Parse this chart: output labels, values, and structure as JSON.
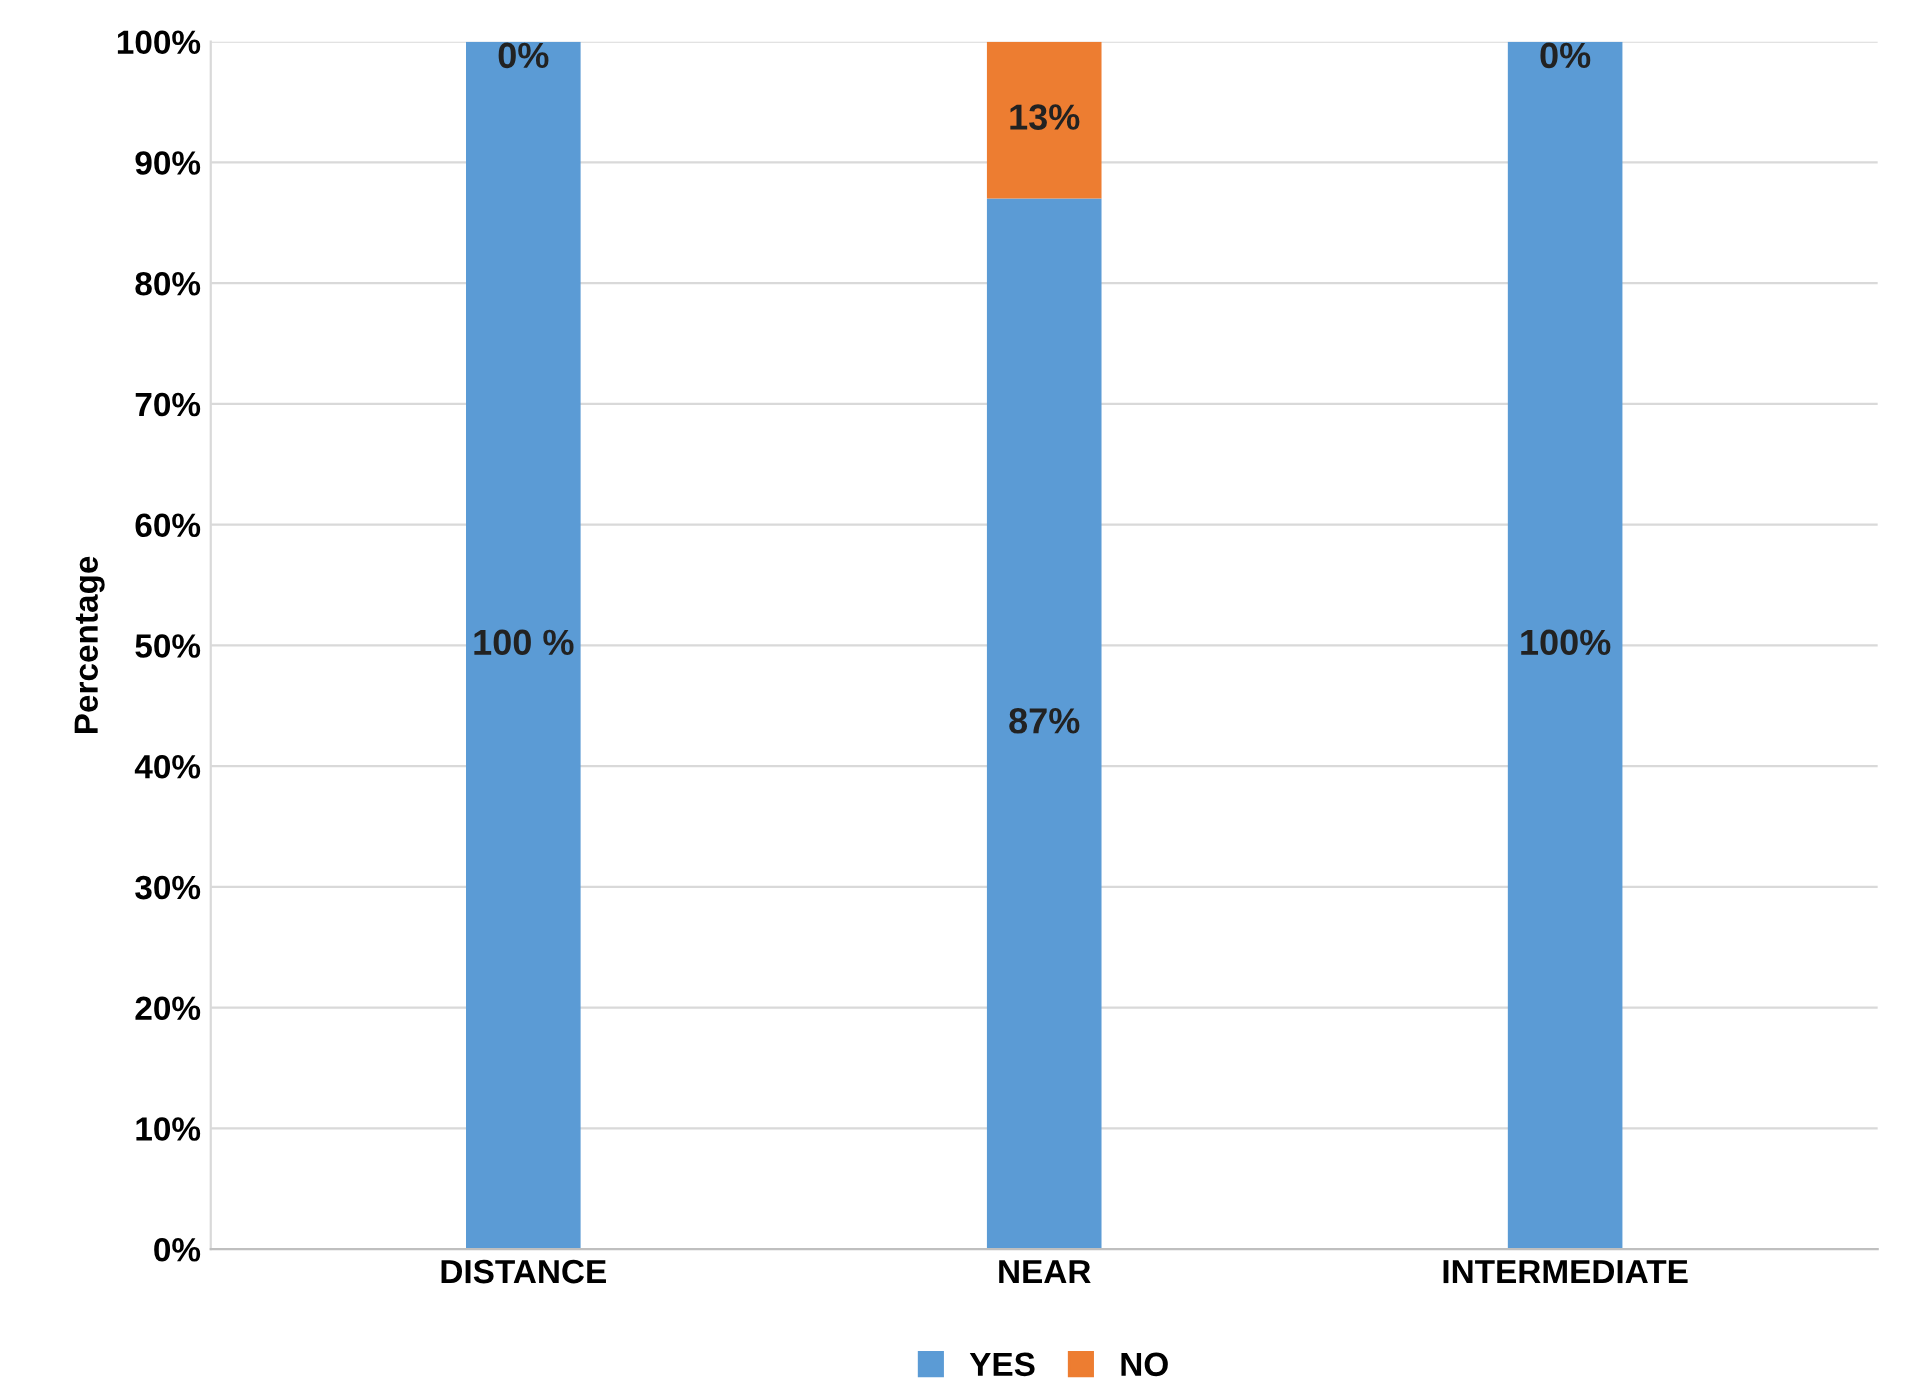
{
  "chart_data": {
    "type": "bar",
    "stacked": true,
    "ylabel": "Percentage",
    "categories": [
      "DISTANCE",
      "NEAR",
      "INTERMEDIATE"
    ],
    "series": [
      {
        "name": "YES",
        "color": "#5b9bd5",
        "values": [
          100,
          87,
          100
        ],
        "value_labels": [
          "100 %",
          "87%",
          "100%"
        ]
      },
      {
        "name": "NO",
        "color": "#ed7d31",
        "values": [
          0,
          13,
          0
        ],
        "value_labels": [
          "0%",
          "13%",
          "0%"
        ]
      }
    ],
    "ylim": [
      0,
      100
    ],
    "yticks": [
      {
        "value": 0,
        "label": "0%"
      },
      {
        "value": 10,
        "label": "10%"
      },
      {
        "value": 20,
        "label": "20%"
      },
      {
        "value": 30,
        "label": "30%"
      },
      {
        "value": 40,
        "label": "40%"
      },
      {
        "value": 50,
        "label": "50%"
      },
      {
        "value": 60,
        "label": "60%"
      },
      {
        "value": 70,
        "label": "70%"
      },
      {
        "value": 80,
        "label": "80%"
      },
      {
        "value": 90,
        "label": "90%"
      },
      {
        "value": 100,
        "label": "100%"
      }
    ],
    "grid": "y",
    "legend": "bottom"
  }
}
